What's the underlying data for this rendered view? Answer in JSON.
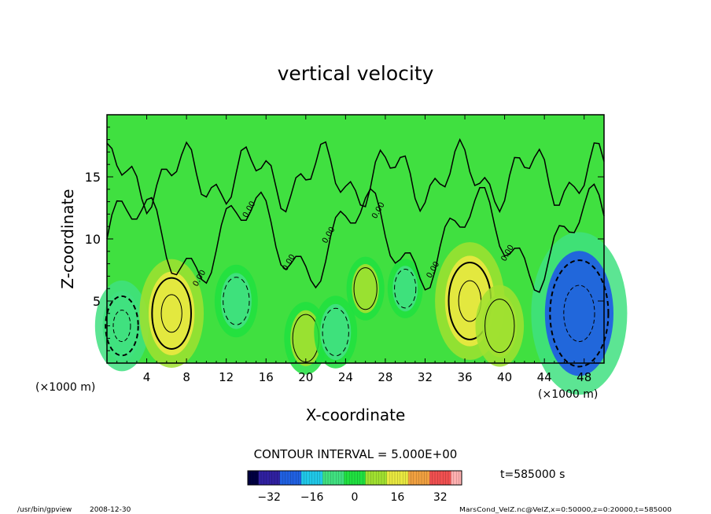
{
  "chart_data": {
    "type": "heatmap",
    "title": "vertical velocity",
    "xlabel": "X-coordinate",
    "ylabel": "Z-coordinate",
    "x_unit_left": "(×1000 m)",
    "x_unit_right": "(×1000 m)",
    "xlim": [
      0,
      50
    ],
    "ylim": [
      0,
      20
    ],
    "x_ticks": [
      "4",
      "8",
      "12",
      "16",
      "20",
      "24",
      "28",
      "32",
      "36",
      "40",
      "44",
      "48"
    ],
    "x_tick_values": [
      4,
      8,
      12,
      16,
      20,
      24,
      28,
      32,
      36,
      40,
      44,
      48
    ],
    "y_ticks": [
      "5",
      "10",
      "15"
    ],
    "y_tick_values": [
      5,
      10,
      15
    ],
    "contour_interval_text": "CONTOUR INTERVAL = 5.000E+00",
    "contour_labels": [
      "0.00",
      "0.00",
      "0.00",
      "0.00",
      "0.00",
      "0.00",
      "0.00"
    ],
    "time_label": "t=585000 s",
    "colorbar": {
      "ticks": [
        "−32",
        "−16",
        "0",
        "16",
        "32"
      ],
      "tick_values": [
        -32,
        -16,
        0,
        16,
        32
      ],
      "range": [
        -40,
        40
      ]
    },
    "features": [
      {
        "x": 1.5,
        "z": 3.0,
        "value": -12
      },
      {
        "x": 6.5,
        "z": 4.0,
        "value": 16
      },
      {
        "x": 13.0,
        "z": 5.0,
        "value": -8
      },
      {
        "x": 20.0,
        "z": 2.0,
        "value": 8
      },
      {
        "x": 23.0,
        "z": 2.5,
        "value": -8
      },
      {
        "x": 26.0,
        "z": 6.0,
        "value": 6
      },
      {
        "x": 30.0,
        "z": 6.0,
        "value": -5
      },
      {
        "x": 36.5,
        "z": 5.0,
        "value": 18
      },
      {
        "x": 39.5,
        "z": 3.0,
        "value": 10
      },
      {
        "x": 47.5,
        "z": 4.0,
        "value": -28
      }
    ],
    "palette": [
      "#000040",
      "#3020a0",
      "#2060e0",
      "#20c8e8",
      "#40e080",
      "#20e040",
      "#a0e030",
      "#e8e840",
      "#f0a040",
      "#f05050",
      "#ffb0b0"
    ]
  },
  "footer": {
    "program": "/usr/bin/gpview",
    "date": "2008-12-30",
    "source": "MarsCond_VelZ.nc@VelZ,x=0:50000,z=0:20000,t=585000"
  }
}
